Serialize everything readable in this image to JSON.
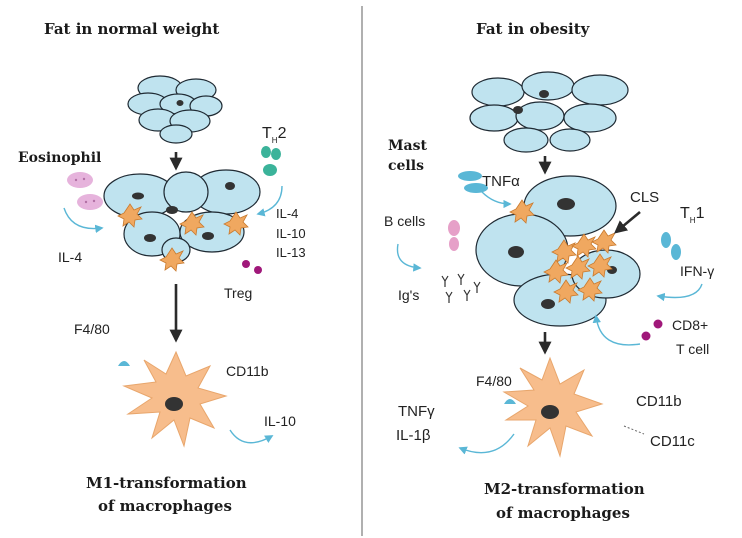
{
  "colors": {
    "adipocyte_fill": "#bfe3ef",
    "macrophage_fill": "#f7bd8c",
    "spiky_cell": "#f0a860",
    "th2_cell": "#3bb39a",
    "th1_cell": "#5ab7d6",
    "eosinophil": "#e6b3dc",
    "treg_cd8": "#a0187a",
    "b_cell": "#e6a0c8",
    "mast_cell": "#5ab7d6",
    "divider": "#b0b0b0"
  },
  "left_panel": {
    "title": "Fat in normal weight",
    "eosinophil": "Eosinophil",
    "il4": "IL-4",
    "th2_main": "T",
    "th2_sub": "H",
    "th2_num": "2",
    "cyto_il4": "IL-4",
    "cyto_il10": "IL-10",
    "cyto_il13": "IL-13",
    "treg": "Treg",
    "f480": "F4/80",
    "cd11b": "CD11b",
    "il10_out": "IL-10",
    "caption_line1": "M1-transformation",
    "caption_line2": "of macrophages"
  },
  "right_panel": {
    "title": "Fat in obesity",
    "mast_line1": "Mast",
    "mast_line2": "cells",
    "tnfa": "TNFα",
    "cls": "CLS",
    "th1_main": "T",
    "th1_sub": "H",
    "th1_num": "1",
    "b_cells": "B cells",
    "igs": "Ig's",
    "ifn": "IFN-γ",
    "cd8_line1": "CD8+",
    "cd8_line2": "T cell",
    "f480": "F4/80",
    "cd11b": "CD11b",
    "cd11c": "CD11c",
    "tnfg": "TNFγ",
    "il1b": "IL-1β",
    "caption_line1": "M2-transformation",
    "caption_line2": "of macrophages"
  }
}
